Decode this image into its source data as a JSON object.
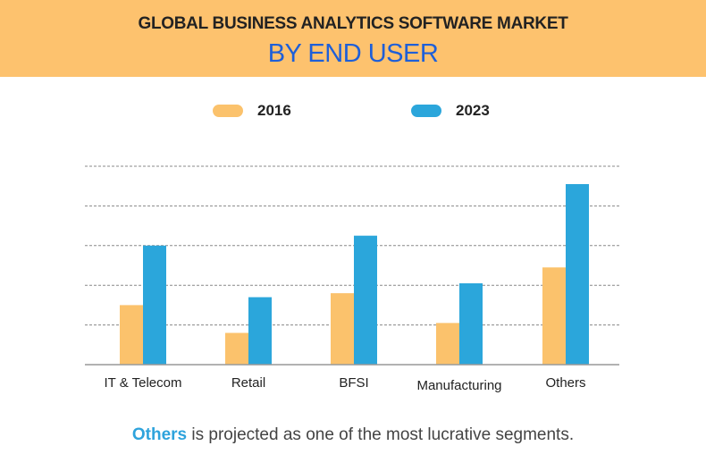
{
  "header": {
    "title": "GLOBAL BUSINESS ANALYTICS SOFTWARE MARKET",
    "subtitle": "BY END USER"
  },
  "colors": {
    "header_bg": "#fdc26e",
    "series_2016": "#fbc26c",
    "series_2023": "#2ba6db",
    "subtitle": "#1e5fd8"
  },
  "chart_data": {
    "type": "bar",
    "title": "GLOBAL BUSINESS ANALYTICS SOFTWARE MARKET BY END USER",
    "xlabel": "",
    "ylabel": "",
    "categories": [
      "IT & Telecom",
      "Retail",
      "BFSI",
      "Manufacturing",
      "Others"
    ],
    "series": [
      {
        "name": "2016",
        "values": [
          1.5,
          0.8,
          1.8,
          1.05,
          2.45
        ]
      },
      {
        "name": "2023",
        "values": [
          3.0,
          1.7,
          3.25,
          2.05,
          4.55
        ]
      }
    ],
    "ylim": [
      0,
      5
    ],
    "grid": true,
    "legend": "top-center",
    "note": "Values in relative gridline units; no y-axis tick labels shown"
  },
  "footer": {
    "highlight": "Others",
    "text": " is projected as one of the most lucrative segments."
  }
}
